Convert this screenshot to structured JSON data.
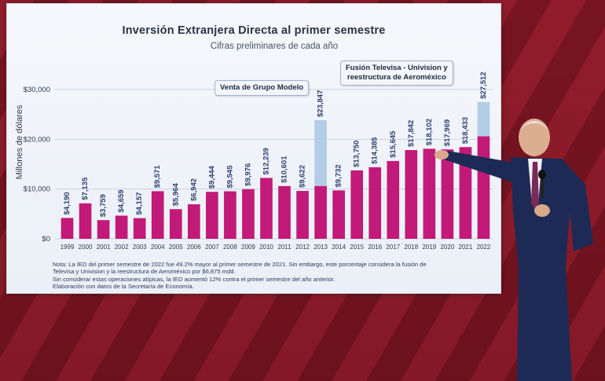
{
  "slide": {
    "title": "Inversión Extranjera Directa al primer semestre",
    "subtitle": "Cifras preliminares de cada año",
    "ylabel": "Millones de dólares",
    "callouts": {
      "modelo": "Venta de Grupo Modelo",
      "televisa_line1": "Fusión Televisa - Univision y",
      "televisa_line2": "reestructura de Aeroméxico"
    },
    "notes": [
      "Nota: La IED del primer semestre de 2022 fue 49.2% mayor al primer semestre de 2021. Sin embargo, este porcentaje considera la fusión de",
      "Televisa y Univision y la reestructura de Aeroméxico por $6,875 mdd.",
      "Sin considerar estas operaciones atípicas, la IED aumentó 12% contra el primer semestre del año anterior.",
      "Elaboración con datos de la Secretaría de Economía."
    ]
  },
  "colors": {
    "bar": "#c21a78",
    "bar_atypical": "#b4cde6",
    "grid": "#c9d3df",
    "label": "#2c3e6e"
  },
  "chart_data": {
    "type": "bar",
    "title": "Inversión Extranjera Directa al primer semestre",
    "subtitle": "Cifras preliminares de cada año",
    "xlabel": "",
    "ylabel": "Millones de dólares",
    "ylim": [
      0,
      33000
    ],
    "yticks": [
      0,
      10000,
      20000,
      30000
    ],
    "ytick_labels": [
      "$0",
      "$10,000",
      "$20,000",
      "$30,000"
    ],
    "grid": true,
    "categories": [
      "1999",
      "2000",
      "2001",
      "2002",
      "2003",
      "2004",
      "2005",
      "2006",
      "2007",
      "2008",
      "2009",
      "2010",
      "2011",
      "2012",
      "2013",
      "2014",
      "2015",
      "2016",
      "2017",
      "2018",
      "2019",
      "2020",
      "2021",
      "2022"
    ],
    "values": [
      4190,
      7135,
      3759,
      4659,
      4157,
      9571,
      5964,
      6942,
      9444,
      9545,
      9976,
      12239,
      10601,
      9622,
      23847,
      9732,
      13750,
      14385,
      15645,
      17842,
      18102,
      17969,
      18433,
      27512
    ],
    "value_labels": [
      "$4,190",
      "$7,135",
      "$3,759",
      "$4,659",
      "$4,157",
      "$9,571",
      "$5,964",
      "$6,942",
      "$9,444",
      "$9,545",
      "$9,976",
      "$12,239",
      "$10,601",
      "$9,622",
      "$23,847",
      "$9,732",
      "$13,750",
      "$14,385",
      "$15,645",
      "$17,842",
      "$18,102",
      "$17,969",
      "$18,433",
      "$27,512"
    ],
    "base_portion": {
      "2013": 10600,
      "2022": 20600
    }
  }
}
